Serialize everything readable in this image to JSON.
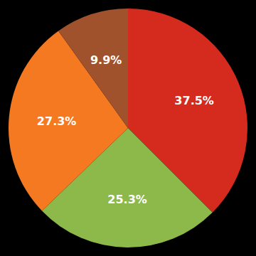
{
  "chart_data": {
    "type": "pie",
    "values": [
      37.5,
      25.3,
      27.3,
      9.9
    ],
    "value_labels": [
      "37.5%",
      "25.3%",
      "27.3%",
      "9.9%"
    ],
    "colors": [
      "#d42b1e",
      "#8db84a",
      "#f47920",
      "#a0522d"
    ],
    "data_labels": true
  }
}
